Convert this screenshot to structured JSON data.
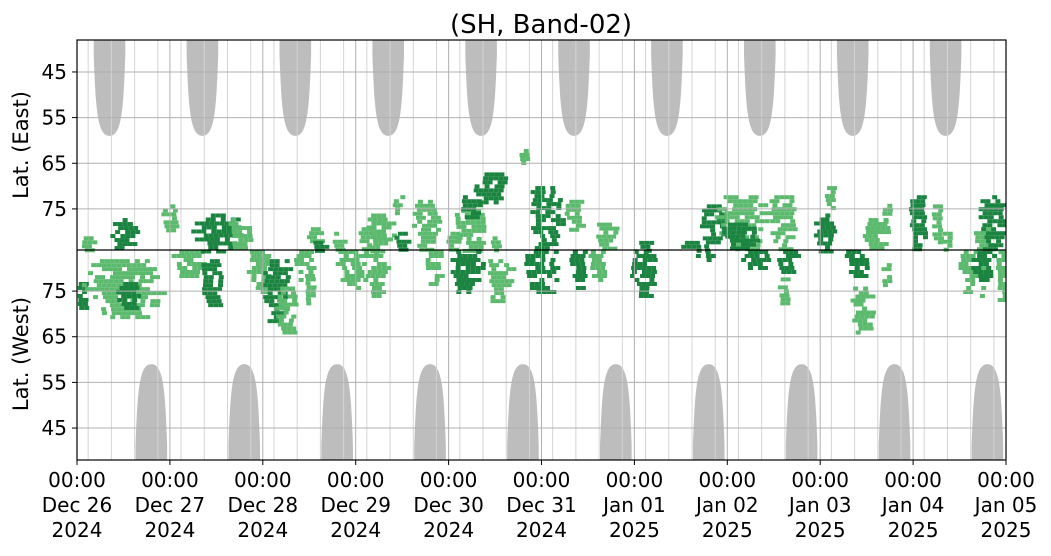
{
  "chart_data": {
    "type": "heatmap",
    "title": "(SH, Band-02)",
    "ylabel_top": "Lat. (East)",
    "ylabel_bottom": "Lat. (West)",
    "x_ticks": [
      {
        "time": "00:00",
        "date": "Dec 26",
        "year": "2024",
        "day": 0
      },
      {
        "time": "00:00",
        "date": "Dec 27",
        "year": "2024",
        "day": 1
      },
      {
        "time": "00:00",
        "date": "Dec 28",
        "year": "2024",
        "day": 2
      },
      {
        "time": "00:00",
        "date": "Dec 29",
        "year": "2024",
        "day": 3
      },
      {
        "time": "00:00",
        "date": "Dec 30",
        "year": "2024",
        "day": 4
      },
      {
        "time": "00:00",
        "date": "Dec 31",
        "year": "2024",
        "day": 5
      },
      {
        "time": "00:00",
        "date": "Jan 01",
        "year": "2025",
        "day": 6
      },
      {
        "time": "00:00",
        "date": "Jan 02",
        "year": "2025",
        "day": 7
      },
      {
        "time": "00:00",
        "date": "Jan 03",
        "year": "2025",
        "day": 8
      },
      {
        "time": "00:00",
        "date": "Jan 04",
        "year": "2025",
        "day": 9
      },
      {
        "time": "00:00",
        "date": "Jan 05",
        "year": "2025",
        "day": 10
      }
    ],
    "y_ticks_east": [
      "45",
      "55",
      "65",
      "75"
    ],
    "y_ticks_west": [
      "75",
      "65",
      "55",
      "45"
    ],
    "y_range_east": [
      38,
      84
    ],
    "y_range_west": [
      84,
      38
    ],
    "grid": true,
    "colors": {
      "dark_green": "#1a8440",
      "light_green": "#5cba6e",
      "gray_shading": "#bdbdbd",
      "grid": "#b0b0b0"
    },
    "gray_regions": {
      "east_day_centers": [
        0.35,
        1.35,
        2.35,
        3.35,
        4.35,
        5.35,
        6.35,
        7.35,
        8.35,
        9.35
      ],
      "west_day_centers": [
        0.8,
        1.8,
        2.8,
        3.8,
        4.8,
        5.8,
        6.8,
        7.8,
        8.8,
        9.8
      ],
      "edge_lat": 59,
      "half_width_days": 0.17
    },
    "clusters": [
      {
        "day": 0.05,
        "hemi": "west",
        "lat_min": 70,
        "lat_max": 77,
        "dw": 0.04,
        "shade": "dark"
      },
      {
        "day": 0.1,
        "hemi": "east",
        "lat_min": 81,
        "lat_max": 84,
        "dw": 0.06,
        "shade": "light"
      },
      {
        "day": 0.5,
        "hemi": "west",
        "lat_min": 69,
        "lat_max": 82,
        "dw": 0.35,
        "shade": "light"
      },
      {
        "day": 0.55,
        "hemi": "west",
        "lat_min": 71,
        "lat_max": 77,
        "dw": 0.1,
        "shade": "dark"
      },
      {
        "day": 0.5,
        "hemi": "east",
        "lat_min": 77,
        "lat_max": 84,
        "dw": 0.12,
        "shade": "dark"
      },
      {
        "day": 1.0,
        "hemi": "east",
        "lat_min": 74,
        "lat_max": 80,
        "dw": 0.08,
        "shade": "light"
      },
      {
        "day": 1.2,
        "hemi": "west",
        "lat_min": 78,
        "lat_max": 84,
        "dw": 0.15,
        "shade": "light"
      },
      {
        "day": 1.45,
        "hemi": "west",
        "lat_min": 72,
        "lat_max": 82,
        "dw": 0.1,
        "shade": "dark"
      },
      {
        "day": 1.5,
        "hemi": "east",
        "lat_min": 76,
        "lat_max": 84,
        "dw": 0.22,
        "shade": "dark"
      },
      {
        "day": 1.75,
        "hemi": "east",
        "lat_min": 77,
        "lat_max": 84,
        "dw": 0.1,
        "shade": "light"
      },
      {
        "day": 1.95,
        "hemi": "west",
        "lat_min": 75,
        "lat_max": 84,
        "dw": 0.1,
        "shade": "light"
      },
      {
        "day": 2.15,
        "hemi": "west",
        "lat_min": 68,
        "lat_max": 82,
        "dw": 0.13,
        "shade": "dark"
      },
      {
        "day": 2.25,
        "hemi": "west",
        "lat_min": 66,
        "lat_max": 76,
        "dw": 0.1,
        "shade": "light"
      },
      {
        "day": 2.45,
        "hemi": "west",
        "lat_min": 77,
        "lat_max": 84,
        "dw": 0.09,
        "shade": "light"
      },
      {
        "day": 2.5,
        "hemi": "west",
        "lat_min": 72,
        "lat_max": 78,
        "dw": 0.04,
        "shade": "light"
      },
      {
        "day": 2.55,
        "hemi": "east",
        "lat_min": 79,
        "lat_max": 84,
        "dw": 0.06,
        "shade": "light"
      },
      {
        "day": 2.6,
        "hemi": "east",
        "lat_min": 82,
        "lat_max": 84,
        "dw": 0.06,
        "shade": "dark"
      },
      {
        "day": 2.8,
        "hemi": "east",
        "lat_min": 80,
        "lat_max": 84,
        "dw": 0.06,
        "shade": "light"
      },
      {
        "day": 2.95,
        "hemi": "west",
        "lat_min": 76,
        "lat_max": 84,
        "dw": 0.13,
        "shade": "light"
      },
      {
        "day": 3.1,
        "hemi": "east",
        "lat_min": 79,
        "lat_max": 84,
        "dw": 0.06,
        "shade": "light"
      },
      {
        "day": 3.2,
        "hemi": "west",
        "lat_min": 74,
        "lat_max": 84,
        "dw": 0.11,
        "shade": "light"
      },
      {
        "day": 3.25,
        "hemi": "east",
        "lat_min": 76,
        "lat_max": 84,
        "dw": 0.12,
        "shade": "light"
      },
      {
        "day": 3.5,
        "hemi": "east",
        "lat_min": 80,
        "lat_max": 84,
        "dw": 0.07,
        "shade": "dark"
      },
      {
        "day": 3.45,
        "hemi": "east",
        "lat_min": 72,
        "lat_max": 76,
        "dw": 0.04,
        "shade": "light"
      },
      {
        "day": 3.75,
        "hemi": "east",
        "lat_min": 73,
        "lat_max": 84,
        "dw": 0.12,
        "shade": "light"
      },
      {
        "day": 3.85,
        "hemi": "west",
        "lat_min": 76,
        "lat_max": 84,
        "dw": 0.08,
        "shade": "light"
      },
      {
        "day": 4.25,
        "hemi": "east",
        "lat_min": 75,
        "lat_max": 84,
        "dw": 0.16,
        "shade": "light"
      },
      {
        "day": 4.05,
        "hemi": "east",
        "lat_min": 80,
        "lat_max": 84,
        "dw": 0.06,
        "shade": "light"
      },
      {
        "day": 4.2,
        "hemi": "west",
        "lat_min": 75,
        "lat_max": 84,
        "dw": 0.15,
        "shade": "dark"
      },
      {
        "day": 4.25,
        "hemi": "east",
        "lat_min": 72,
        "lat_max": 77,
        "dw": 0.1,
        "shade": "dark"
      },
      {
        "day": 4.45,
        "hemi": "east",
        "lat_min": 67,
        "lat_max": 74,
        "dw": 0.16,
        "shade": "dark"
      },
      {
        "day": 4.55,
        "hemi": "west",
        "lat_min": 73,
        "lat_max": 82,
        "dw": 0.12,
        "shade": "light"
      },
      {
        "day": 4.5,
        "hemi": "east",
        "lat_min": 81,
        "lat_max": 84,
        "dw": 0.04,
        "shade": "light"
      },
      {
        "day": 4.8,
        "hemi": "east",
        "lat_min": 61,
        "lat_max": 65,
        "dw": 0.04,
        "shade": "light"
      },
      {
        "day": 5.05,
        "hemi": "east",
        "lat_min": 70,
        "lat_max": 84,
        "dw": 0.15,
        "shade": "dark"
      },
      {
        "day": 5.0,
        "hemi": "west",
        "lat_min": 75,
        "lat_max": 84,
        "dw": 0.15,
        "shade": "dark"
      },
      {
        "day": 5.35,
        "hemi": "east",
        "lat_min": 73,
        "lat_max": 80,
        "dw": 0.08,
        "shade": "light"
      },
      {
        "day": 5.4,
        "hemi": "west",
        "lat_min": 76,
        "lat_max": 84,
        "dw": 0.08,
        "shade": "dark"
      },
      {
        "day": 5.6,
        "hemi": "west",
        "lat_min": 77,
        "lat_max": 84,
        "dw": 0.08,
        "shade": "light"
      },
      {
        "day": 5.7,
        "hemi": "east",
        "lat_min": 78,
        "lat_max": 84,
        "dw": 0.1,
        "shade": "light"
      },
      {
        "day": 6.1,
        "hemi": "west",
        "lat_min": 74,
        "lat_max": 84,
        "dw": 0.12,
        "shade": "dark"
      },
      {
        "day": 6.1,
        "hemi": "east",
        "lat_min": 82,
        "lat_max": 84,
        "dw": 0.08,
        "shade": "dark"
      },
      {
        "day": 6.6,
        "hemi": "east",
        "lat_min": 82,
        "lat_max": 84,
        "dw": 0.1,
        "shade": "dark"
      },
      {
        "day": 6.85,
        "hemi": "east",
        "lat_min": 74,
        "lat_max": 84,
        "dw": 0.12,
        "shade": "dark"
      },
      {
        "day": 6.75,
        "hemi": "west",
        "lat_min": 82,
        "lat_max": 84,
        "dw": 0.1,
        "shade": "dark"
      },
      {
        "day": 7.15,
        "hemi": "east",
        "lat_min": 72,
        "lat_max": 84,
        "dw": 0.22,
        "shade": "light"
      },
      {
        "day": 7.15,
        "hemi": "east",
        "lat_min": 78,
        "lat_max": 84,
        "dw": 0.18,
        "shade": "dark"
      },
      {
        "day": 7.3,
        "hemi": "west",
        "lat_min": 80,
        "lat_max": 84,
        "dw": 0.15,
        "shade": "dark"
      },
      {
        "day": 7.6,
        "hemi": "east",
        "lat_min": 72,
        "lat_max": 84,
        "dw": 0.13,
        "shade": "light"
      },
      {
        "day": 7.65,
        "hemi": "west",
        "lat_min": 79,
        "lat_max": 84,
        "dw": 0.1,
        "shade": "dark"
      },
      {
        "day": 7.6,
        "hemi": "west",
        "lat_min": 72,
        "lat_max": 78,
        "dw": 0.05,
        "shade": "light"
      },
      {
        "day": 8.05,
        "hemi": "east",
        "lat_min": 76,
        "lat_max": 84,
        "dw": 0.1,
        "shade": "dark"
      },
      {
        "day": 8.1,
        "hemi": "east",
        "lat_min": 70,
        "lat_max": 75,
        "dw": 0.05,
        "shade": "light"
      },
      {
        "day": 8.4,
        "hemi": "west",
        "lat_min": 78,
        "lat_max": 84,
        "dw": 0.12,
        "shade": "dark"
      },
      {
        "day": 8.45,
        "hemi": "west",
        "lat_min": 66,
        "lat_max": 76,
        "dw": 0.1,
        "shade": "light"
      },
      {
        "day": 8.6,
        "hemi": "east",
        "lat_min": 77,
        "lat_max": 84,
        "dw": 0.12,
        "shade": "light"
      },
      {
        "day": 8.7,
        "hemi": "west",
        "lat_min": 76,
        "lat_max": 82,
        "dw": 0.04,
        "shade": "light"
      },
      {
        "day": 8.7,
        "hemi": "east",
        "lat_min": 73,
        "lat_max": 78,
        "dw": 0.03,
        "shade": "light"
      },
      {
        "day": 9.05,
        "hemi": "east",
        "lat_min": 72,
        "lat_max": 84,
        "dw": 0.08,
        "shade": "dark"
      },
      {
        "day": 9.25,
        "hemi": "east",
        "lat_min": 74,
        "lat_max": 82,
        "dw": 0.05,
        "shade": "light"
      },
      {
        "day": 9.35,
        "hemi": "east",
        "lat_min": 80,
        "lat_max": 84,
        "dw": 0.04,
        "shade": "light"
      },
      {
        "day": 9.65,
        "hemi": "west",
        "lat_min": 74,
        "lat_max": 84,
        "dw": 0.14,
        "shade": "light"
      },
      {
        "day": 9.75,
        "hemi": "west",
        "lat_min": 77,
        "lat_max": 84,
        "dw": 0.1,
        "shade": "dark"
      },
      {
        "day": 9.75,
        "hemi": "east",
        "lat_min": 79,
        "lat_max": 84,
        "dw": 0.08,
        "shade": "light"
      },
      {
        "day": 9.85,
        "hemi": "east",
        "lat_min": 72,
        "lat_max": 84,
        "dw": 0.12,
        "shade": "dark"
      },
      {
        "day": 9.95,
        "hemi": "west",
        "lat_min": 73,
        "lat_max": 84,
        "dw": 0.05,
        "shade": "light"
      }
    ]
  }
}
